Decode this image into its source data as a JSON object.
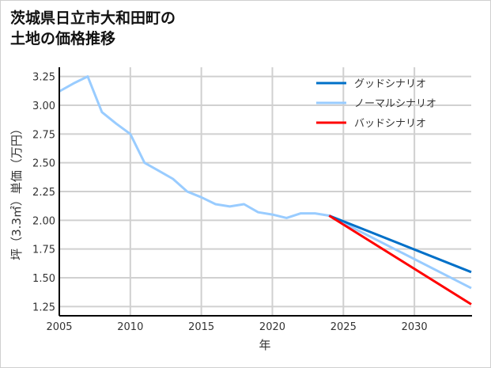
{
  "chart_data": {
    "type": "line",
    "title_lines": [
      "茨城県日立市大和田町の",
      "土地の価格推移"
    ],
    "xlabel": "年",
    "ylabel": "坪（3.3㎡）単価（万円）",
    "xlim": [
      2005,
      2034
    ],
    "ylim": [
      1.17,
      3.33
    ],
    "xticks": [
      2005,
      2010,
      2015,
      2020,
      2025,
      2030
    ],
    "yticks": [
      1.25,
      1.5,
      1.75,
      2.0,
      2.25,
      2.5,
      2.75,
      3.0,
      3.25
    ],
    "grid": true,
    "legend_position": "top-right",
    "series": [
      {
        "name": "グッドシナリオ",
        "color": "#0070c8",
        "x": [
          2024,
          2034
        ],
        "y": [
          2.04,
          1.55
        ]
      },
      {
        "name": "ノーマルシナリオ",
        "color": "#99ccff",
        "x": [
          2005,
          2006,
          2007,
          2008,
          2009,
          2010,
          2011,
          2012,
          2013,
          2014,
          2015,
          2016,
          2017,
          2018,
          2019,
          2020,
          2021,
          2022,
          2023,
          2024,
          2034
        ],
        "y": [
          3.12,
          3.19,
          3.25,
          2.94,
          2.84,
          2.75,
          2.5,
          2.43,
          2.36,
          2.25,
          2.2,
          2.14,
          2.12,
          2.14,
          2.07,
          2.05,
          2.02,
          2.06,
          2.06,
          2.04,
          1.41
        ]
      },
      {
        "name": "バッドシナリオ",
        "color": "#ff0000",
        "x": [
          2024,
          2034
        ],
        "y": [
          2.04,
          1.27
        ]
      }
    ]
  }
}
